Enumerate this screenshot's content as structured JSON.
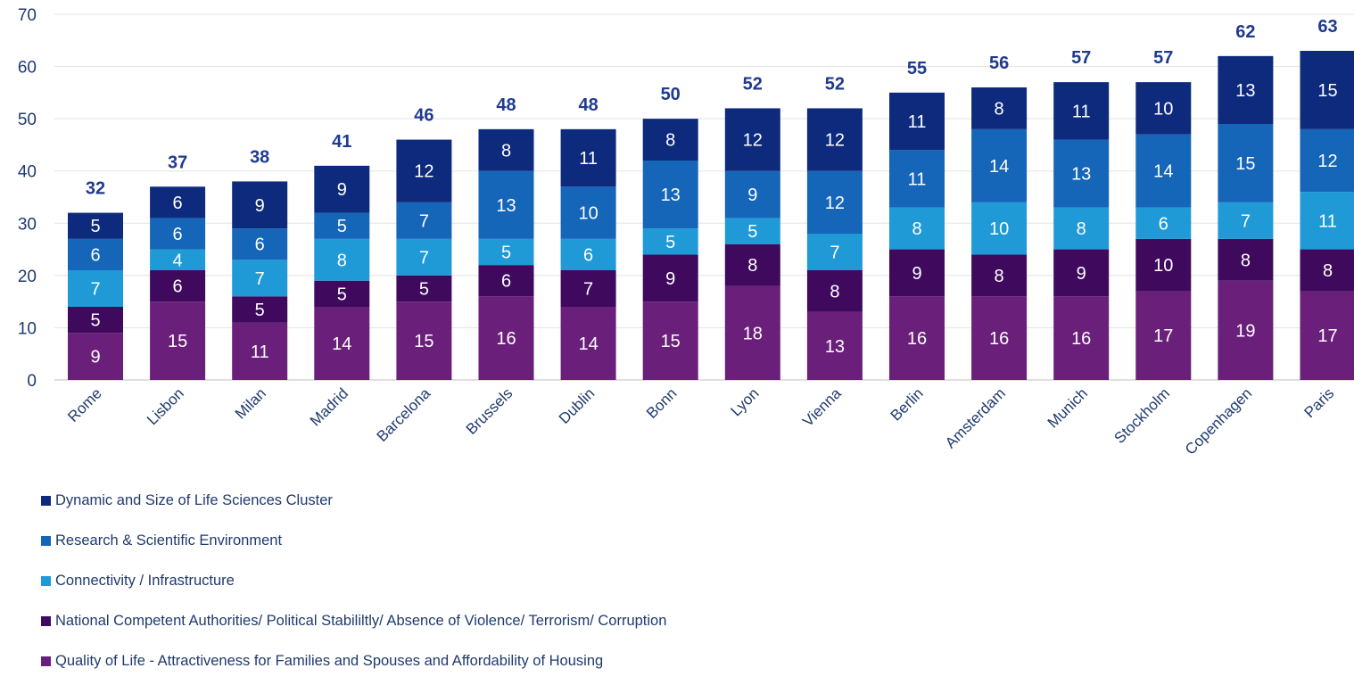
{
  "chart_data": {
    "type": "bar",
    "stacked": true,
    "categories": [
      "Rome",
      "Lisbon",
      "Milan",
      "Madrid",
      "Barcelona",
      "Brussels",
      "Dublin",
      "Bonn",
      "Lyon",
      "Vienna",
      "Berlin",
      "Amsterdam",
      "Munich",
      "Stockholm",
      "Copenhagen",
      "Paris"
    ],
    "series": [
      {
        "name": "Quality of Life - Attractiveness for Families and Spouses and Affordability of Housing",
        "color": "#6a1f7a",
        "values": [
          9,
          15,
          11,
          14,
          15,
          16,
          14,
          15,
          18,
          13,
          16,
          16,
          16,
          17,
          19,
          17
        ]
      },
      {
        "name": "National Competent Authorities/ Political Stabililtly/ Absence of Violence/ Terrorism/ Corruption",
        "color": "#3f0a5e",
        "values": [
          5,
          6,
          5,
          5,
          5,
          6,
          7,
          9,
          8,
          8,
          9,
          8,
          9,
          10,
          8,
          8
        ]
      },
      {
        "name": "Connectivity / Infrastructure",
        "color": "#1f9ad6",
        "values": [
          7,
          4,
          7,
          8,
          7,
          5,
          6,
          5,
          5,
          7,
          8,
          10,
          8,
          6,
          7,
          11
        ]
      },
      {
        "name": "Research & Scientific Environment",
        "color": "#1565b8",
        "values": [
          6,
          6,
          6,
          5,
          7,
          13,
          10,
          13,
          9,
          12,
          11,
          14,
          13,
          14,
          15,
          12
        ]
      },
      {
        "name": "Dynamic and Size of Life Sciences Cluster",
        "color": "#0e2a7d",
        "values": [
          5,
          6,
          9,
          9,
          12,
          8,
          11,
          8,
          12,
          12,
          11,
          8,
          11,
          10,
          13,
          15
        ]
      }
    ],
    "totals": [
      32,
      37,
      38,
      41,
      46,
      48,
      48,
      50,
      52,
      52,
      55,
      56,
      57,
      57,
      62,
      63
    ],
    "ylim": [
      0,
      70
    ],
    "yticks": [
      0,
      10,
      20,
      30,
      40,
      50,
      60,
      70
    ],
    "grid": true,
    "legend_position": "bottom",
    "legend_order": [
      4,
      3,
      2,
      1,
      0
    ],
    "title": "",
    "xlabel": "",
    "ylabel": ""
  }
}
